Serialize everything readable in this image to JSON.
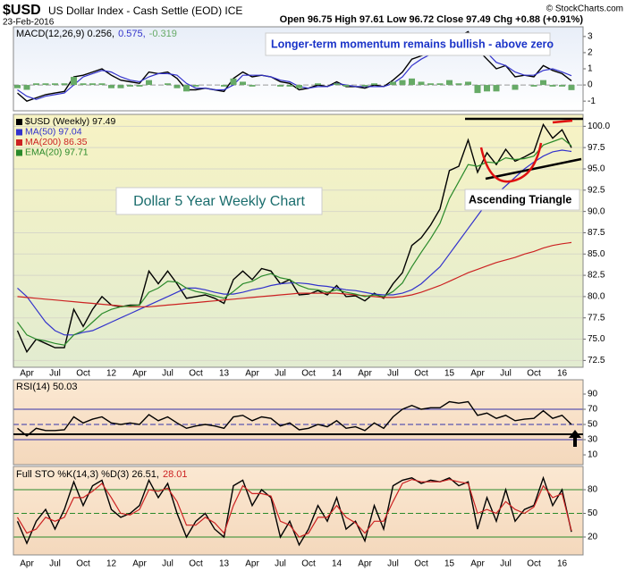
{
  "header": {
    "symbol": "$USD",
    "name": "US Dollar Index - Cash Settle (EOD) ICE",
    "date": "23-Feb-2016",
    "quote": "Open 96.75 High 97.61 Low 96.72 Close 97.49 Chg +0.88 (+0.91%)",
    "copyright": "© StockCharts.com"
  },
  "chart_data": [
    {
      "type": "line",
      "title_parts": [
        {
          "text": "MACD(12,26,9) 0.256,",
          "color": "#000000"
        },
        {
          "text": "0.575,",
          "color": "#3333cc"
        },
        {
          "text": "-0.319",
          "color": "#66aa66"
        }
      ],
      "annotations": [
        "Longer-term momentum remains bullish - above zero"
      ],
      "ylim": [
        -1.6,
        3.6
      ],
      "yticks": [
        -1,
        0,
        1,
        2,
        3
      ],
      "levels": [
        0
      ],
      "level_color": "#999999",
      "series": [
        {
          "name": "MACD",
          "color": "#000000",
          "style": "line",
          "values": [
            -0.5,
            -1,
            -0.8,
            -0.6,
            -0.5,
            -0.4,
            0.5,
            0.6,
            0.8,
            1,
            0.6,
            0.3,
            0.2,
            0.1,
            0.8,
            0.7,
            0.8,
            0.4,
            -0.3,
            -0.3,
            -0.2,
            -0.3,
            -0.4,
            0.4,
            0.8,
            0.5,
            0.6,
            0.5,
            0.2,
            0.1,
            -0.3,
            -0.2,
            0,
            -0.1,
            0.2,
            -0.1,
            -0.1,
            -0.2,
            0,
            -0.1,
            0.3,
            0.8,
            1.6,
            1.8,
            2,
            2.3,
            2.9,
            3,
            3.3,
            2.2,
            1.6,
            1,
            1.2,
            0.5,
            0.6,
            0.5,
            1.2,
            0.9,
            0.7,
            0.256
          ]
        },
        {
          "name": "Signal",
          "color": "#3333cc",
          "style": "line",
          "values": [
            -0.3,
            -0.7,
            -0.9,
            -0.7,
            -0.6,
            -0.5,
            0,
            0.5,
            0.7,
            0.9,
            0.8,
            0.5,
            0.3,
            0.2,
            0.5,
            0.7,
            0.7,
            0.6,
            0.1,
            -0.2,
            -0.2,
            -0.3,
            -0.3,
            0,
            0.6,
            0.6,
            0.6,
            0.5,
            0.3,
            0.2,
            -0.1,
            -0.2,
            -0.1,
            -0.1,
            0.1,
            0,
            -0.1,
            -0.1,
            -0.1,
            -0.1,
            0.1,
            0.5,
            1.2,
            1.6,
            1.9,
            2.2,
            2.6,
            2.9,
            3.1,
            2.7,
            2,
            1.4,
            1.2,
            0.8,
            0.6,
            0.6,
            0.9,
            1,
            0.8,
            0.575
          ]
        },
        {
          "name": "Histogram",
          "color": "#66aa66",
          "style": "bar",
          "values": [
            -0.2,
            -0.3,
            0.1,
            0.1,
            0.1,
            0.1,
            0.5,
            0.1,
            0.1,
            0.1,
            -0.2,
            -0.2,
            -0.1,
            -0.1,
            0.3,
            0,
            0.1,
            -0.2,
            -0.4,
            -0.1,
            0,
            0,
            -0.1,
            0.4,
            0.2,
            -0.1,
            0,
            0,
            -0.1,
            -0.1,
            -0.2,
            0,
            0.1,
            0,
            0.1,
            -0.1,
            0,
            -0.1,
            0.1,
            0,
            0.2,
            0.3,
            0.4,
            0.2,
            0.1,
            0.1,
            0.3,
            0.1,
            0.2,
            -0.5,
            -0.4,
            -0.4,
            0,
            -0.3,
            0,
            -0.1,
            0.3,
            -0.1,
            -0.1,
            -0.319
          ]
        }
      ]
    },
    {
      "type": "line",
      "annotations": [
        "Dollar 5 Year Weekly Chart",
        "Ascending Triangle"
      ],
      "categories": [
        null,
        "Apr",
        null,
        null,
        "Jul",
        null,
        null,
        "Oct",
        null,
        null,
        "12",
        null,
        null,
        "Apr",
        null,
        null,
        "Jul",
        null,
        null,
        "Oct",
        null,
        null,
        "13",
        null,
        null,
        "Apr",
        null,
        null,
        "Jul",
        null,
        null,
        "Oct",
        null,
        null,
        "14",
        null,
        null,
        "Apr",
        null,
        null,
        "Jul",
        null,
        null,
        "Oct",
        null,
        null,
        "15",
        null,
        null,
        "Apr",
        null,
        null,
        "Jul",
        null,
        null,
        "Oct",
        null,
        null,
        "16",
        null
      ],
      "ylim": [
        71.7,
        101.4
      ],
      "grid": true,
      "yticks": [
        {
          "value": 72.5,
          "label": "72.5"
        },
        {
          "value": 75,
          "label": "75.0"
        },
        77.5,
        {
          "value": 80,
          "label": "80.0"
        },
        82.5,
        {
          "value": 85,
          "label": "85.0"
        },
        87.5,
        {
          "value": 90,
          "label": "90.0"
        },
        92.5,
        {
          "value": 95,
          "label": "95.0"
        },
        97.5,
        {
          "value": 100,
          "label": "100.0"
        }
      ],
      "series": [
        {
          "name": "$USD (Weekly) 97.49",
          "color": "#000000",
          "style": "line",
          "values": [
            76.0,
            73.5,
            75.0,
            74.5,
            74.0,
            74.0,
            78.5,
            76.5,
            78.5,
            80.0,
            79.0,
            78.8,
            79.0,
            79.0,
            83.0,
            81.5,
            83.0,
            81.5,
            79.8,
            80.0,
            80.2,
            79.8,
            79.2,
            82.0,
            83.0,
            82.0,
            83.3,
            83.0,
            81.5,
            82.0,
            80.2,
            80.3,
            80.7,
            80.2,
            81.3,
            80.0,
            80.1,
            79.5,
            80.4,
            79.8,
            81.5,
            82.8,
            86.0,
            86.9,
            88.4,
            90.3,
            94.8,
            95.3,
            98.4,
            94.6,
            96.9,
            95.5,
            97.3,
            95.9,
            96.4,
            97.0,
            100.2,
            98.6,
            99.6,
            97.49
          ]
        },
        {
          "name": "MA(50) 97.04",
          "color": "#3333cc",
          "style": "line",
          "values": [
            81,
            80,
            78.5,
            77,
            76,
            75.5,
            75.5,
            75.8,
            76,
            76.5,
            77,
            77.5,
            78,
            78.5,
            79,
            79.5,
            80,
            80.5,
            81,
            81,
            80.8,
            80.5,
            80.3,
            80.3,
            80.5,
            80.8,
            81,
            81.3,
            81.5,
            81.6,
            81.6,
            81.5,
            81.3,
            81.2,
            81,
            80.8,
            80.7,
            80.5,
            80.3,
            80.2,
            80.2,
            80.4,
            80.8,
            81.5,
            82.5,
            83.5,
            85,
            86.5,
            88,
            89.5,
            91,
            92,
            93,
            94,
            95,
            95.8,
            96.5,
            97,
            97.2,
            97.04
          ]
        },
        {
          "name": "MA(200) 86.35",
          "color": "#cc2222",
          "style": "line",
          "values": [
            80,
            79.9,
            79.8,
            79.7,
            79.6,
            79.5,
            79.4,
            79.3,
            79.2,
            79.1,
            79,
            78.9,
            78.8,
            78.8,
            78.8,
            78.9,
            79,
            79.1,
            79.2,
            79.3,
            79.4,
            79.5,
            79.6,
            79.7,
            79.8,
            79.9,
            80,
            80.1,
            80.2,
            80.3,
            80.4,
            80.4,
            80.4,
            80.4,
            80.4,
            80.3,
            80.2,
            80.1,
            80,
            79.9,
            79.9,
            80,
            80.2,
            80.5,
            80.9,
            81.3,
            81.8,
            82.3,
            82.8,
            83.2,
            83.6,
            84,
            84.3,
            84.6,
            85,
            85.3,
            85.7,
            86,
            86.2,
            86.35
          ]
        },
        {
          "name": "EMA(20) 97.71",
          "color": "#2a8a2a",
          "style": "line",
          "values": [
            77,
            75.5,
            75,
            74.8,
            74.5,
            74.3,
            75.5,
            76,
            77,
            78,
            78.5,
            78.8,
            78.9,
            79,
            80.5,
            81,
            81.8,
            81.7,
            81,
            80.6,
            80.4,
            80.1,
            79.8,
            80.6,
            81.5,
            81.8,
            82.4,
            82.7,
            82.2,
            82,
            81.3,
            80.9,
            80.8,
            80.5,
            80.8,
            80.5,
            80.3,
            80,
            80.2,
            80,
            80.6,
            81.6,
            83.5,
            85.2,
            86.8,
            88.6,
            91.5,
            93.5,
            95.5,
            95.3,
            95.8,
            95.7,
            96.3,
            96.1,
            96.2,
            96.5,
            97.8,
            98.2,
            98.6,
            97.71
          ]
        }
      ]
    },
    {
      "type": "line",
      "title_parts": [
        {
          "text": "RSI(14) 50.03",
          "color": "#000000"
        }
      ],
      "ylim": [
        -2.9,
        108.8
      ],
      "yticks": [
        10,
        30,
        50,
        70,
        90
      ],
      "levels": [
        70,
        50,
        30
      ],
      "level_color": "#3333aa",
      "series": [
        {
          "name": "RSI",
          "color": "#000000",
          "style": "line",
          "values": [
            45,
            35,
            45,
            42,
            42,
            43,
            60,
            52,
            57,
            60,
            52,
            50,
            52,
            50,
            63,
            55,
            60,
            52,
            45,
            48,
            50,
            48,
            45,
            60,
            62,
            55,
            60,
            58,
            48,
            52,
            43,
            45,
            50,
            47,
            55,
            45,
            47,
            42,
            52,
            45,
            60,
            70,
            75,
            70,
            72,
            72,
            80,
            78,
            80,
            62,
            65,
            58,
            62,
            55,
            57,
            58,
            68,
            58,
            62,
            50.03
          ]
        }
      ]
    },
    {
      "type": "line",
      "title_parts": [
        {
          "text": "Full STO %K(14,3) %D(3) 26.51,",
          "color": "#000000"
        },
        {
          "text": "28.01",
          "color": "#cc2222"
        }
      ],
      "categories": [
        null,
        "Apr",
        null,
        null,
        "Jul",
        null,
        null,
        "Oct",
        null,
        null,
        "12",
        null,
        null,
        "Apr",
        null,
        null,
        "Jul",
        null,
        null,
        "Oct",
        null,
        null,
        "13",
        null,
        null,
        "Apr",
        null,
        null,
        "Jul",
        null,
        null,
        "Oct",
        null,
        null,
        "14",
        null,
        null,
        "Apr",
        null,
        null,
        "Jul",
        null,
        null,
        "Oct",
        null,
        null,
        "15",
        null,
        null,
        "Apr",
        null,
        null,
        "Jul",
        null,
        null,
        "Oct",
        null,
        null,
        "16",
        null
      ],
      "ylim": [
        -2.7,
        109.5
      ],
      "yticks": [
        20,
        50,
        80
      ],
      "levels": [
        80,
        50,
        20
      ],
      "level_color": "#2a8a2a",
      "series": [
        {
          "name": "%K",
          "color": "#000000",
          "style": "line",
          "values": [
            40,
            12,
            40,
            55,
            30,
            55,
            90,
            60,
            85,
            92,
            55,
            45,
            50,
            60,
            92,
            70,
            88,
            50,
            20,
            40,
            50,
            30,
            20,
            85,
            92,
            60,
            80,
            70,
            20,
            40,
            10,
            30,
            60,
            40,
            70,
            30,
            40,
            15,
            60,
            30,
            85,
            92,
            95,
            88,
            92,
            90,
            95,
            85,
            90,
            30,
            70,
            40,
            80,
            40,
            55,
            60,
            95,
            60,
            80,
            26.51
          ]
        },
        {
          "name": "%D",
          "color": "#cc2222",
          "style": "line",
          "values": [
            45,
            25,
            30,
            45,
            40,
            45,
            70,
            70,
            78,
            88,
            70,
            50,
            48,
            55,
            80,
            78,
            82,
            65,
            35,
            35,
            45,
            38,
            25,
            60,
            85,
            75,
            75,
            72,
            40,
            35,
            20,
            25,
            45,
            45,
            60,
            45,
            38,
            25,
            40,
            40,
            65,
            88,
            93,
            90,
            90,
            90,
            93,
            90,
            88,
            50,
            55,
            50,
            65,
            55,
            50,
            58,
            85,
            70,
            75,
            28.01
          ]
        }
      ]
    }
  ]
}
